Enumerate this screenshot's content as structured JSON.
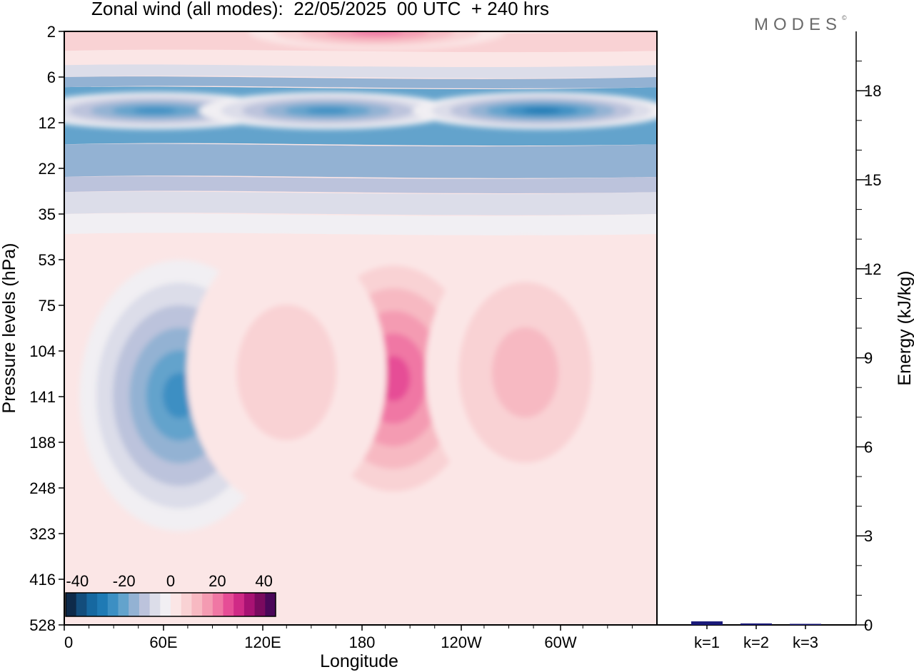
{
  "title": "Zonal wind (all modes):  22/05/2025  00 UTC  + 240 hrs",
  "logo": "MODES",
  "logo_mark": "©",
  "chart_data": [
    {
      "type": "heatmap",
      "xlabel": "Longitude",
      "ylabel": "Pressure levels (hPa)",
      "x_ticks": [
        "0",
        "60E",
        "120E",
        "180",
        "120W",
        "60W"
      ],
      "y_ticks": [
        "2",
        "6",
        "12",
        "22",
        "35",
        "53",
        "75",
        "104",
        "141",
        "188",
        "248",
        "323",
        "416",
        "528"
      ],
      "y_scale": "log",
      "colorbar": {
        "ticks": [
          "-40",
          "-20",
          "0",
          "20",
          "40"
        ],
        "range": [
          -45,
          45
        ],
        "colors": [
          "#0e2a4a",
          "#134d7c",
          "#1668a0",
          "#1f7ab4",
          "#3c8fc3",
          "#63a3cc",
          "#93b2d3",
          "#bcc3dc",
          "#dcdde9",
          "#f1eff3",
          "#fbe6e6",
          "#f9d2d4",
          "#f7b9c2",
          "#f49bb2",
          "#f077a4",
          "#e64d96",
          "#d02a86",
          "#a81273",
          "#7a0a5f",
          "#4a0759"
        ]
      },
      "features": [
        {
          "lon": 55,
          "p": 10,
          "value": -25
        },
        {
          "lon": 160,
          "p": 10,
          "value": -22
        },
        {
          "lon": 290,
          "p": 10,
          "value": -28
        },
        {
          "lon": 70,
          "p": 140,
          "value": -25
        },
        {
          "lon": 200,
          "p": 125,
          "value": 22
        },
        {
          "lon": 280,
          "p": 120,
          "value": 12
        },
        {
          "lon": 135,
          "p": 120,
          "value": 8
        },
        {
          "lon": 190,
          "p": 2,
          "value": 18
        }
      ]
    },
    {
      "type": "bar",
      "categories": [
        "k=1",
        "k=2",
        "k=3"
      ],
      "values": [
        0.12,
        0.05,
        0.02
      ],
      "ylabel": "Energy (kJ/kg)",
      "yticks": [
        "0",
        "3",
        "6",
        "9",
        "12",
        "15",
        "18"
      ],
      "ylim": [
        0,
        20
      ],
      "color": "#1b1b7a"
    }
  ]
}
